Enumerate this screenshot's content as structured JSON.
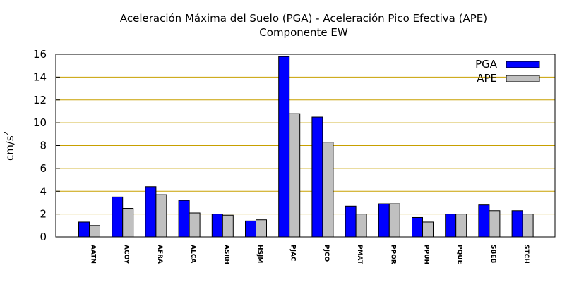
{
  "chart_data": {
    "type": "bar",
    "title": "Aceleración Máxima del Suelo (PGA) -  Aceleración Pico Efectiva (APE)",
    "subtitle": "Componente EW",
    "xlabel": "",
    "ylabel": "cm/s",
    "ylabel_sup": "2",
    "ylim": [
      0,
      16
    ],
    "yticks": [
      0,
      2,
      4,
      6,
      8,
      10,
      12,
      14,
      16
    ],
    "grid": true,
    "legend_position": "top-right",
    "categories": [
      "AATN",
      "ACOY",
      "AFRA",
      "ALCA",
      "ASRH",
      "HSJM",
      "PJAC",
      "PJCO",
      "PMAT",
      "PPOR",
      "PPUH",
      "PQUE",
      "SBEB",
      "STCH"
    ],
    "series": [
      {
        "name": "PGA",
        "color": "#0000ff",
        "values": [
          1.3,
          3.5,
          4.4,
          3.2,
          2.0,
          1.4,
          15.8,
          10.5,
          2.7,
          2.9,
          1.7,
          2.0,
          2.8,
          2.3
        ]
      },
      {
        "name": "APE",
        "color": "#c0c0c0",
        "values": [
          1.0,
          2.5,
          3.7,
          2.1,
          1.9,
          1.5,
          10.8,
          8.3,
          2.0,
          2.9,
          1.3,
          2.0,
          2.3,
          2.0
        ]
      }
    ],
    "grid_color": "#c8a000"
  }
}
